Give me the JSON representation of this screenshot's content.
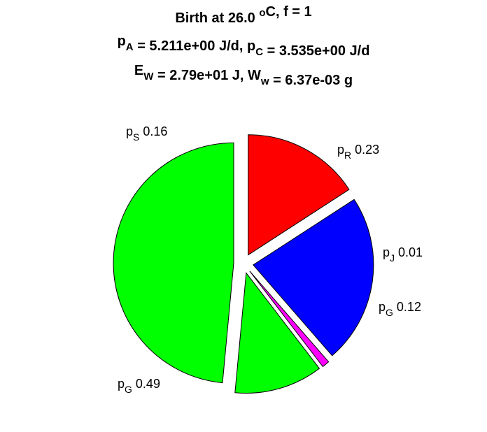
{
  "chart_data": {
    "type": "pie",
    "title_lines": [
      [
        {
          "t": "Birth at 26.0 "
        },
        {
          "t": "o",
          "sup": true
        },
        {
          "t": "C, f = 1"
        }
      ],
      [
        {
          "t": "p"
        },
        {
          "t": "A",
          "sub": true
        },
        {
          "t": " = 5.211e+00 J/d, p"
        },
        {
          "t": "C",
          "sub": true
        },
        {
          "t": " = 3.535e+00 J/d"
        }
      ],
      [
        {
          "t": "E"
        },
        {
          "t": "W",
          "sub": true
        },
        {
          "t": " = 2.79e+01 J, W"
        },
        {
          "t": "w",
          "sub": true
        },
        {
          "t": " = 6.37e-03 g"
        }
      ]
    ],
    "slices": [
      {
        "sym": "p",
        "sub": "S",
        "label": "0.16",
        "value": 0.16,
        "color": "#ff0000"
      },
      {
        "sym": "p",
        "sub": "R",
        "label": "0.23",
        "value": 0.23,
        "color": "#0000ff"
      },
      {
        "sym": "p",
        "sub": "J",
        "label": "0.01",
        "value": 0.01,
        "color": "#ff00ff"
      },
      {
        "sym": "p",
        "sub": "G",
        "label": "0.12",
        "value": 0.12,
        "color": "#00ff00"
      },
      {
        "sym": "p",
        "sub": "G",
        "label": "0.49",
        "value": 0.49,
        "color": "#00ff00"
      }
    ]
  }
}
